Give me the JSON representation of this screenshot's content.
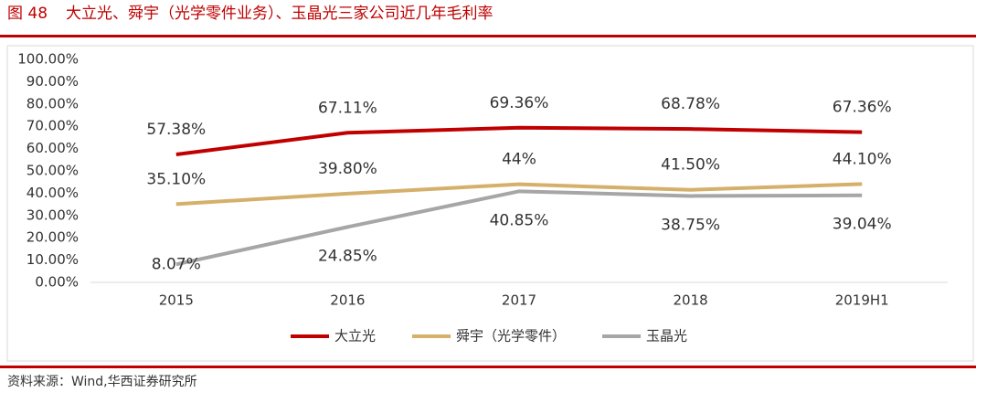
{
  "chart_data": {
    "type": "line",
    "figure_label": "图 48",
    "title": "大立光、舜宇（光学零件业务）、玉晶光三家公司近几年毛利率",
    "source": "资料来源：Wind,华西证券研究所",
    "categories": [
      "2015",
      "2016",
      "2017",
      "2018",
      "2019H1"
    ],
    "series": [
      {
        "name": "大立光",
        "color": "#c00000",
        "values": [
          57.38,
          67.11,
          69.36,
          68.78,
          67.36
        ],
        "value_labels": [
          "57.38%",
          "67.11%",
          "69.36%",
          "68.78%",
          "67.36%"
        ]
      },
      {
        "name": "舜宇（光学零件）",
        "color": "#d4b06a",
        "values": [
          35.1,
          39.8,
          44,
          41.5,
          44.1
        ],
        "value_labels": [
          "35.10%",
          "39.80%",
          "44%",
          "41.50%",
          "44.10%"
        ]
      },
      {
        "name": "玉晶光",
        "color": "#a6a6a6",
        "values": [
          8.07,
          24.85,
          40.85,
          38.75,
          39.04
        ],
        "value_labels": [
          "8.07%",
          "24.85%",
          "40.85%",
          "38.75%",
          "39.04%"
        ]
      }
    ],
    "ylim": [
      0,
      100
    ],
    "yticks": [
      {
        "value": 0,
        "label": "0.00%"
      },
      {
        "value": 10,
        "label": "10.00%"
      },
      {
        "value": 20,
        "label": "20.00%"
      },
      {
        "value": 30,
        "label": "30.00%"
      },
      {
        "value": 40,
        "label": "40.00%"
      },
      {
        "value": 50,
        "label": "50.00%"
      },
      {
        "value": 60,
        "label": "60.00%"
      },
      {
        "value": 70,
        "label": "70.00%"
      },
      {
        "value": 80,
        "label": "80.00%"
      },
      {
        "value": 90,
        "label": "90.00%"
      },
      {
        "value": 100,
        "label": "100.00%"
      }
    ],
    "grid": false,
    "legend": "bottom"
  }
}
